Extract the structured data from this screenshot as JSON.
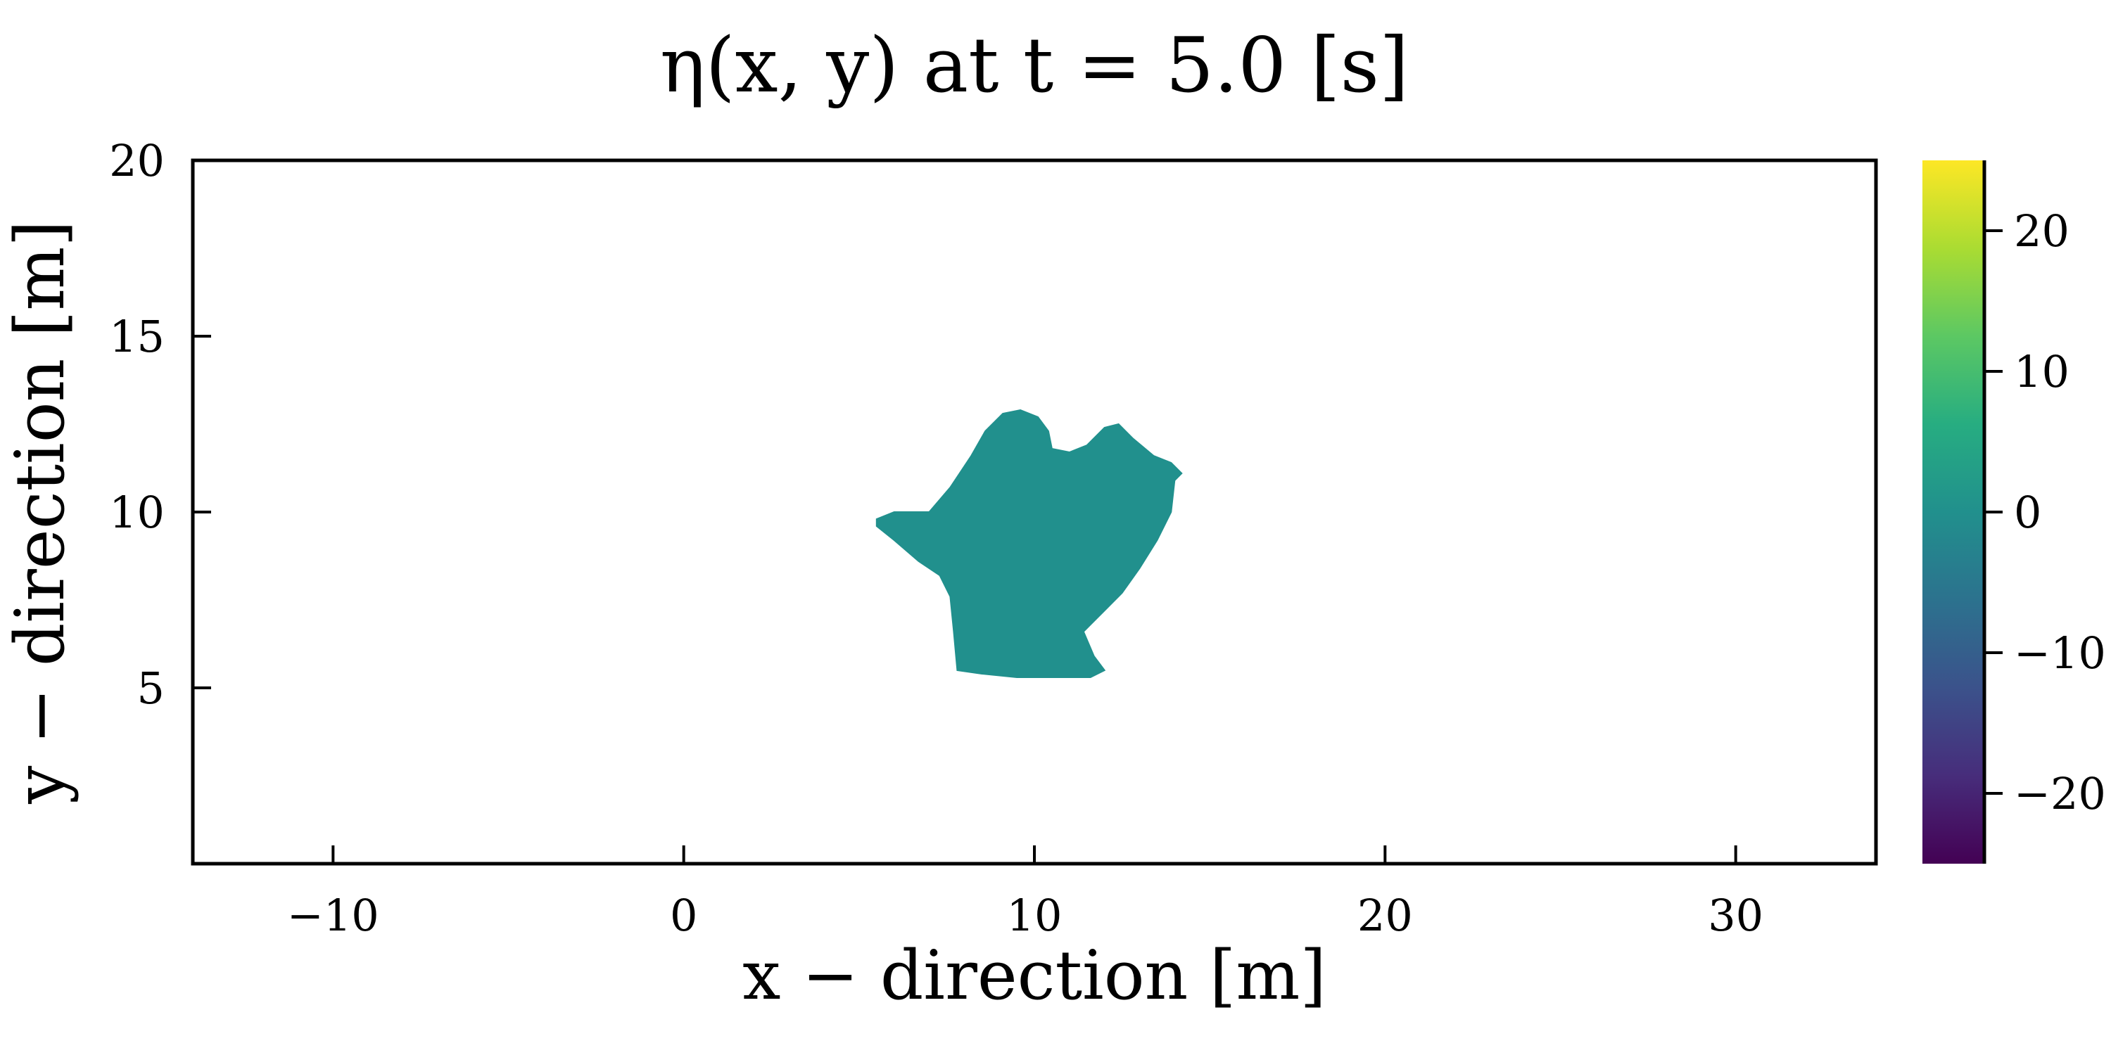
{
  "chart_data": {
    "type": "heatmap",
    "title": "η(x, y)  at t = 5.0 [s]",
    "xlabel": "x − direction [m]",
    "ylabel": "y − direction [m]",
    "xlim": [
      -14,
      34
    ],
    "ylim": [
      0,
      20
    ],
    "x_ticks": [
      -10,
      0,
      10,
      20,
      30
    ],
    "x_tick_labels": [
      "−10",
      "0",
      "10",
      "20",
      "30"
    ],
    "y_ticks": [
      5,
      10,
      15,
      20
    ],
    "y_tick_labels": [
      "5",
      "10",
      "15",
      "20"
    ],
    "colorbar": {
      "colormap": "viridis",
      "range": [
        -25,
        25
      ],
      "ticks": [
        -20,
        -10,
        0,
        10,
        20
      ],
      "tick_labels": [
        "−20",
        "−10",
        "0",
        "10",
        "20"
      ]
    },
    "grid": false,
    "field": {
      "value": 0,
      "color": "#21908d",
      "region_outline": [
        [
          5.5,
          9.8
        ],
        [
          6.0,
          10.0
        ],
        [
          7.0,
          10.0
        ],
        [
          7.6,
          10.7
        ],
        [
          8.2,
          11.6
        ],
        [
          8.6,
          12.3
        ],
        [
          9.1,
          12.8
        ],
        [
          9.6,
          12.9
        ],
        [
          10.1,
          12.7
        ],
        [
          10.4,
          12.3
        ],
        [
          10.5,
          11.8
        ],
        [
          11.0,
          11.7
        ],
        [
          11.5,
          11.9
        ],
        [
          12.0,
          12.4
        ],
        [
          12.4,
          12.5
        ],
        [
          12.8,
          12.1
        ],
        [
          13.4,
          11.6
        ],
        [
          13.9,
          11.4
        ],
        [
          14.2,
          11.1
        ],
        [
          14.0,
          10.9
        ],
        [
          13.9,
          10.0
        ],
        [
          13.5,
          9.2
        ],
        [
          13.0,
          8.4
        ],
        [
          12.5,
          7.7
        ],
        [
          12.0,
          7.2
        ],
        [
          11.4,
          6.6
        ],
        [
          11.7,
          5.9
        ],
        [
          12.0,
          5.5
        ],
        [
          11.6,
          5.3
        ],
        [
          11.0,
          5.3
        ],
        [
          10.5,
          5.3
        ],
        [
          9.5,
          5.3
        ],
        [
          8.5,
          5.4
        ],
        [
          7.8,
          5.5
        ],
        [
          7.7,
          6.6
        ],
        [
          7.6,
          7.6
        ],
        [
          7.3,
          8.2
        ],
        [
          6.7,
          8.6
        ],
        [
          6.0,
          9.2
        ],
        [
          5.5,
          9.6
        ]
      ]
    }
  }
}
